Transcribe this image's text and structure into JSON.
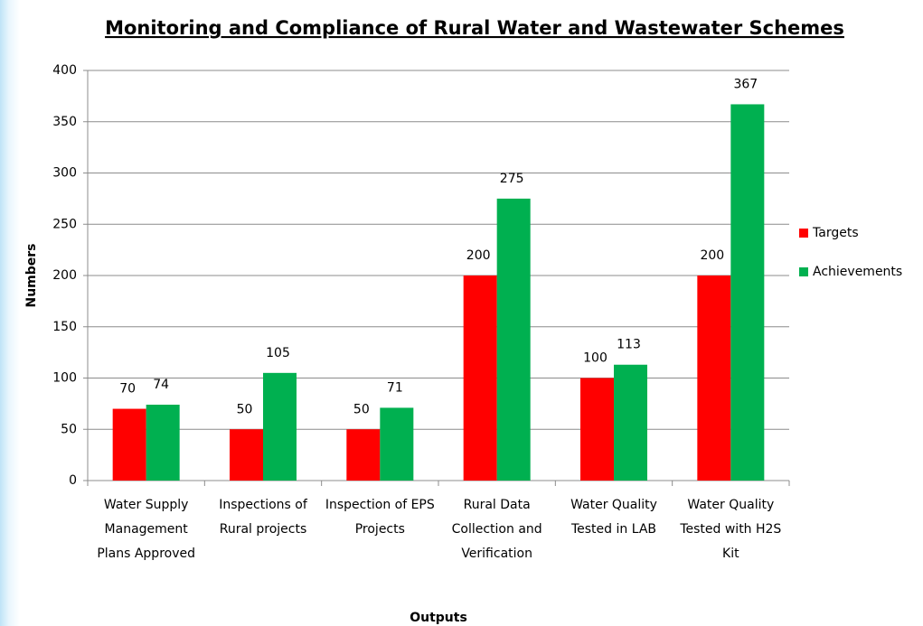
{
  "chart_data": {
    "type": "bar",
    "title": "Monitoring and Compliance of Rural Water and Wastewater Schemes",
    "x_label": "Outputs",
    "y_label": "Numbers",
    "categories": [
      "Water Supply Management Plans Approved",
      "Inspections of Rural projects",
      "Inspection of EPS Projects",
      "Rural Data Collection and Verification",
      "Water Quality Tested in LAB",
      "Water Quality Tested with H2S Kit"
    ],
    "series": [
      {
        "name": "Targets",
        "color": "#ff0000",
        "values": [
          70,
          50,
          50,
          200,
          100,
          200
        ]
      },
      {
        "name": "Achievements",
        "color": "#00b050",
        "values": [
          74,
          105,
          71,
          275,
          113,
          367
        ]
      }
    ],
    "ylim": [
      0,
      400
    ],
    "yticks": [
      0,
      50,
      100,
      150,
      200,
      250,
      300,
      350,
      400
    ],
    "grid": true,
    "legend": "right"
  }
}
